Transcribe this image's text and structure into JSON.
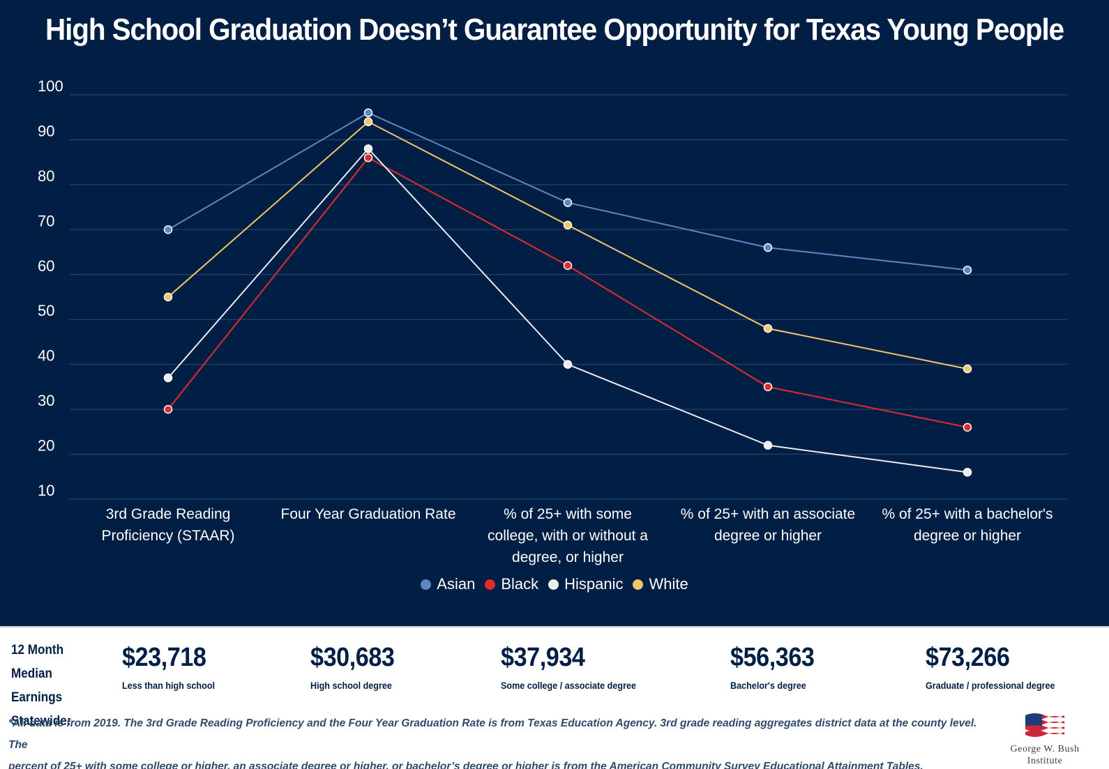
{
  "chart_data": {
    "type": "line",
    "title": "High School Graduation Doesn’t Guarantee Opportunity for Texas Young People",
    "categories": [
      [
        "3rd Grade Reading",
        "Proficiency (STAAR)"
      ],
      [
        "Four Year Graduation Rate"
      ],
      [
        "% of 25+ with some",
        "college, with or without a",
        "degree, or higher"
      ],
      [
        "% of 25+ with an associate",
        "degree or higher"
      ],
      [
        "% of 25+ with a bachelor's",
        "degree or higher"
      ]
    ],
    "y_ticks": [
      "100",
      "90",
      "80",
      "70",
      "60",
      "50",
      "40",
      "30",
      "20",
      "10"
    ],
    "ylim": [
      10,
      100
    ],
    "grid": true,
    "legend_position": "bottom-center",
    "series": [
      {
        "name": "Asian",
        "color": "#5b88c3",
        "values": [
          70,
          96,
          76,
          66,
          61
        ]
      },
      {
        "name": "Black",
        "color": "#e02c2c",
        "values": [
          30,
          86,
          62,
          35,
          26
        ]
      },
      {
        "name": "Hispanic",
        "color": "#ececec",
        "values": [
          37,
          88,
          40,
          22,
          16
        ]
      },
      {
        "name": "White",
        "color": "#f2c76a",
        "values": [
          55,
          94,
          71,
          48,
          39
        ]
      }
    ]
  },
  "earnings": {
    "heading_lines": [
      "12 Month",
      "Median Earnings",
      "Statewide:"
    ],
    "items": [
      {
        "amount": "$23,718",
        "label": "Less than high school"
      },
      {
        "amount": "$30,683",
        "label": "High school degree"
      },
      {
        "amount": "$37,934",
        "label": "Some college / associate degree"
      },
      {
        "amount": "$56,363",
        "label": "Bachelor's degree"
      },
      {
        "amount": "$73,266",
        "label": "Graduate / professional degree"
      }
    ]
  },
  "footnote": {
    "lines": [
      "*All data is from 2019. The 3rd Grade Reading Proficiency and the Four Year Graduation Rate is from Texas Education Agency. 3rd grade reading aggregates district data at the county level. The",
      "percent of 25+ with some college or higher, an associate degree or higher, or bachelor’s degree or higher is from the American Community Survey Educational Attainment Tables."
    ]
  },
  "logo": {
    "line1": "George W. Bush",
    "line2": "Institute"
  }
}
